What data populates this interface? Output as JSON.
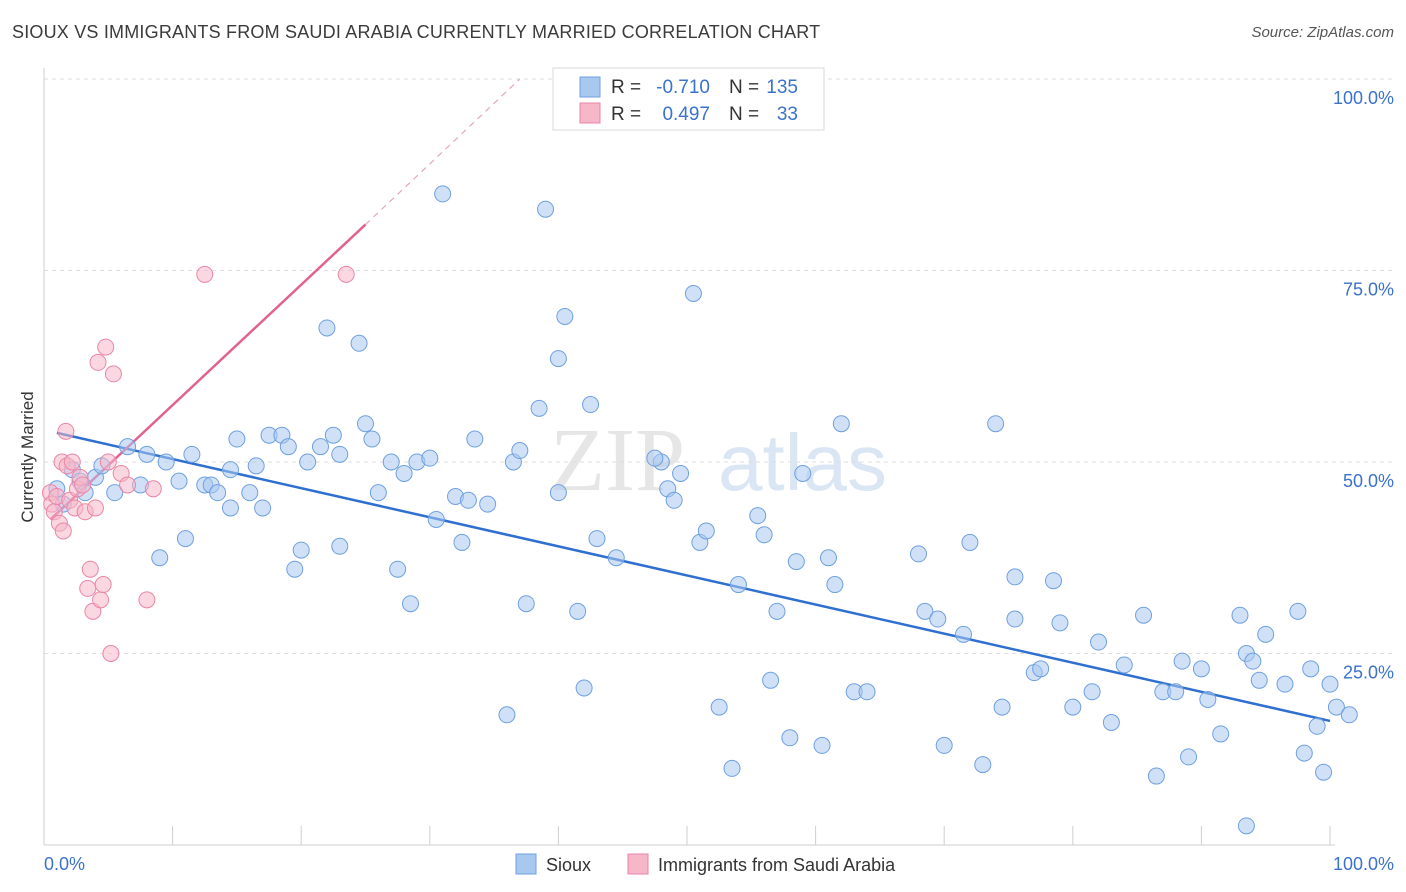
{
  "header": {
    "title": "SIOUX VS IMMIGRANTS FROM SAUDI ARABIA CURRENTLY MARRIED CORRELATION CHART",
    "source": "Source: ZipAtlas.com"
  },
  "watermark": {
    "zip": "ZIP",
    "atlas": "atlas"
  },
  "legend_box": {
    "rows": [
      {
        "r_label": "R =",
        "r_value": "-0.710",
        "n_label": "N =",
        "n_value": "135",
        "color": "#a9c8f0"
      },
      {
        "r_label": "R =",
        "r_value": "0.497",
        "n_label": "N =",
        "n_value": "33",
        "color": "#f6b7c9"
      }
    ]
  },
  "bottom_legend": {
    "items": [
      {
        "label": "Sioux",
        "color": "#a9c8f0"
      },
      {
        "label": "Immigrants from Saudi Arabia",
        "color": "#f6b7c9"
      }
    ]
  },
  "colors": {
    "blue_fill": "#a9c8f0",
    "blue_stroke": "#6fa0e0",
    "blue_line": "#2f6fd0",
    "pink_fill": "#f6b7c9",
    "pink_stroke": "#ea86a8",
    "pink_line": "#e2628f",
    "tick_label": "#3a72cc"
  },
  "chart_data": {
    "type": "scatter",
    "ylabel": "Currently Married",
    "xlim": [
      0,
      100
    ],
    "ylim": [
      0,
      100
    ],
    "x_tick_labels": {
      "left": "0.0%",
      "right": "100.0%"
    },
    "y_tick_labels": [
      "100.0%",
      "75.0%",
      "50.0%",
      "25.0%"
    ],
    "y_ticks": [
      100,
      75,
      50,
      25
    ],
    "grid": "horizontal dashed",
    "series": [
      {
        "name": "Sioux",
        "trend": {
          "x0": 1.0,
          "y0": 53.8,
          "x1": 100.0,
          "y1": 16.2
        },
        "points": [
          [
            1.0,
            46.5
          ],
          [
            1.5,
            44.5
          ],
          [
            2.2,
            49.0
          ],
          [
            2.8,
            47.5
          ],
          [
            3.2,
            46.0
          ],
          [
            4.0,
            48.0
          ],
          [
            4.5,
            49.5
          ],
          [
            5.5,
            46.0
          ],
          [
            6.5,
            52.0
          ],
          [
            7.5,
            47.0
          ],
          [
            8.0,
            51.0
          ],
          [
            9.0,
            37.5
          ],
          [
            9.5,
            50.0
          ],
          [
            10.5,
            47.5
          ],
          [
            11.0,
            40.0
          ],
          [
            11.5,
            51.0
          ],
          [
            12.5,
            47.0
          ],
          [
            13.0,
            47.0
          ],
          [
            13.5,
            46.0
          ],
          [
            14.5,
            49.0
          ],
          [
            14.5,
            44.0
          ],
          [
            15.0,
            53.0
          ],
          [
            16.0,
            46.0
          ],
          [
            16.5,
            49.5
          ],
          [
            17.0,
            44.0
          ],
          [
            17.5,
            53.5
          ],
          [
            18.5,
            53.5
          ],
          [
            19.0,
            52.0
          ],
          [
            19.5,
            36.0
          ],
          [
            20.0,
            38.5
          ],
          [
            20.5,
            50.0
          ],
          [
            21.5,
            52.0
          ],
          [
            22.0,
            67.5
          ],
          [
            22.5,
            53.5
          ],
          [
            23.0,
            39.0
          ],
          [
            23.0,
            51.0
          ],
          [
            24.5,
            65.5
          ],
          [
            25.0,
            55.0
          ],
          [
            25.5,
            53.0
          ],
          [
            26.0,
            46.0
          ],
          [
            27.0,
            50.0
          ],
          [
            27.5,
            36.0
          ],
          [
            28.0,
            48.5
          ],
          [
            28.5,
            31.5
          ],
          [
            29.0,
            50.0
          ],
          [
            30.0,
            50.5
          ],
          [
            30.5,
            42.5
          ],
          [
            31.0,
            85.0
          ],
          [
            32.0,
            45.5
          ],
          [
            32.5,
            39.5
          ],
          [
            33.0,
            45.0
          ],
          [
            33.5,
            53.0
          ],
          [
            34.5,
            44.5
          ],
          [
            36.0,
            17.0
          ],
          [
            36.5,
            50.0
          ],
          [
            37.0,
            51.5
          ],
          [
            37.5,
            31.5
          ],
          [
            38.5,
            57.0
          ],
          [
            39.0,
            83.0
          ],
          [
            40.0,
            46.0
          ],
          [
            40.0,
            63.5
          ],
          [
            40.5,
            69.0
          ],
          [
            41.5,
            30.5
          ],
          [
            42.0,
            20.5
          ],
          [
            42.5,
            57.5
          ],
          [
            43.0,
            40.0
          ],
          [
            44.5,
            37.5
          ],
          [
            48.0,
            50.0
          ],
          [
            48.5,
            46.5
          ],
          [
            49.0,
            45.0
          ],
          [
            49.5,
            48.5
          ],
          [
            50.5,
            72.0
          ],
          [
            51.0,
            39.5
          ],
          [
            51.5,
            41.0
          ],
          [
            52.5,
            18.0
          ],
          [
            53.5,
            10.0
          ],
          [
            54.0,
            34.0
          ],
          [
            55.5,
            43.0
          ],
          [
            56.0,
            40.5
          ],
          [
            56.5,
            21.5
          ],
          [
            57.0,
            30.5
          ],
          [
            58.0,
            14.0
          ],
          [
            58.5,
            37.0
          ],
          [
            59.0,
            48.5
          ],
          [
            60.5,
            13.0
          ],
          [
            61.0,
            37.5
          ],
          [
            61.5,
            34.0
          ],
          [
            62.0,
            55.0
          ],
          [
            63.0,
            20.0
          ],
          [
            64.0,
            20.0
          ],
          [
            68.0,
            38.0
          ],
          [
            68.5,
            30.5
          ],
          [
            69.5,
            29.5
          ],
          [
            70.0,
            13.0
          ],
          [
            71.5,
            27.5
          ],
          [
            72.0,
            39.5
          ],
          [
            73.0,
            10.5
          ],
          [
            74.0,
            55.0
          ],
          [
            74.5,
            18.0
          ],
          [
            75.5,
            29.5
          ],
          [
            75.5,
            35.0
          ],
          [
            77.0,
            22.5
          ],
          [
            77.5,
            23.0
          ],
          [
            78.5,
            34.5
          ],
          [
            79.0,
            29.0
          ],
          [
            80.0,
            18.0
          ],
          [
            81.5,
            20.0
          ],
          [
            82.0,
            26.5
          ],
          [
            83.0,
            16.0
          ],
          [
            84.0,
            23.5
          ],
          [
            85.5,
            30.0
          ],
          [
            86.5,
            9.0
          ],
          [
            87.0,
            20.0
          ],
          [
            88.0,
            20.0
          ],
          [
            88.5,
            24.0
          ],
          [
            89.0,
            11.5
          ],
          [
            90.0,
            23.0
          ],
          [
            90.5,
            19.0
          ],
          [
            91.5,
            14.5
          ],
          [
            93.0,
            30.0
          ],
          [
            93.5,
            25.0
          ],
          [
            93.5,
            2.5
          ],
          [
            94.0,
            24.0
          ],
          [
            94.5,
            21.5
          ],
          [
            95.0,
            27.5
          ],
          [
            96.5,
            21.0
          ],
          [
            97.5,
            30.5
          ],
          [
            98.0,
            12.0
          ],
          [
            98.5,
            23.0
          ],
          [
            99.0,
            15.5
          ],
          [
            99.5,
            9.5
          ],
          [
            100.0,
            21.0
          ],
          [
            100.5,
            18.0
          ],
          [
            101.5,
            17.0
          ],
          [
            47.5,
            50.5
          ]
        ]
      },
      {
        "name": "Immigrants from Saudi Arabia",
        "trend": {
          "x0": 0.5,
          "y0": 42.5,
          "x1": 25.0,
          "y1": 81.0,
          "dash_x1": 37.0,
          "dash_y1": 100.0
        },
        "points": [
          [
            0.5,
            46.0
          ],
          [
            0.6,
            44.5
          ],
          [
            0.8,
            43.5
          ],
          [
            1.0,
            45.5
          ],
          [
            1.2,
            42.0
          ],
          [
            1.4,
            50.0
          ],
          [
            1.5,
            41.0
          ],
          [
            1.7,
            54.0
          ],
          [
            1.8,
            49.5
          ],
          [
            2.0,
            45.0
          ],
          [
            2.2,
            50.0
          ],
          [
            2.4,
            44.0
          ],
          [
            2.6,
            46.5
          ],
          [
            2.8,
            48.0
          ],
          [
            3.0,
            47.0
          ],
          [
            3.2,
            43.5
          ],
          [
            3.4,
            33.5
          ],
          [
            3.6,
            36.0
          ],
          [
            3.8,
            30.5
          ],
          [
            4.0,
            44.0
          ],
          [
            4.2,
            63.0
          ],
          [
            4.4,
            32.0
          ],
          [
            4.6,
            34.0
          ],
          [
            4.8,
            65.0
          ],
          [
            5.0,
            50.0
          ],
          [
            5.2,
            25.0
          ],
          [
            5.4,
            61.5
          ],
          [
            6.0,
            48.5
          ],
          [
            6.5,
            47.0
          ],
          [
            8.0,
            32.0
          ],
          [
            8.5,
            46.5
          ],
          [
            12.5,
            74.5
          ],
          [
            23.5,
            74.5
          ]
        ]
      }
    ]
  }
}
